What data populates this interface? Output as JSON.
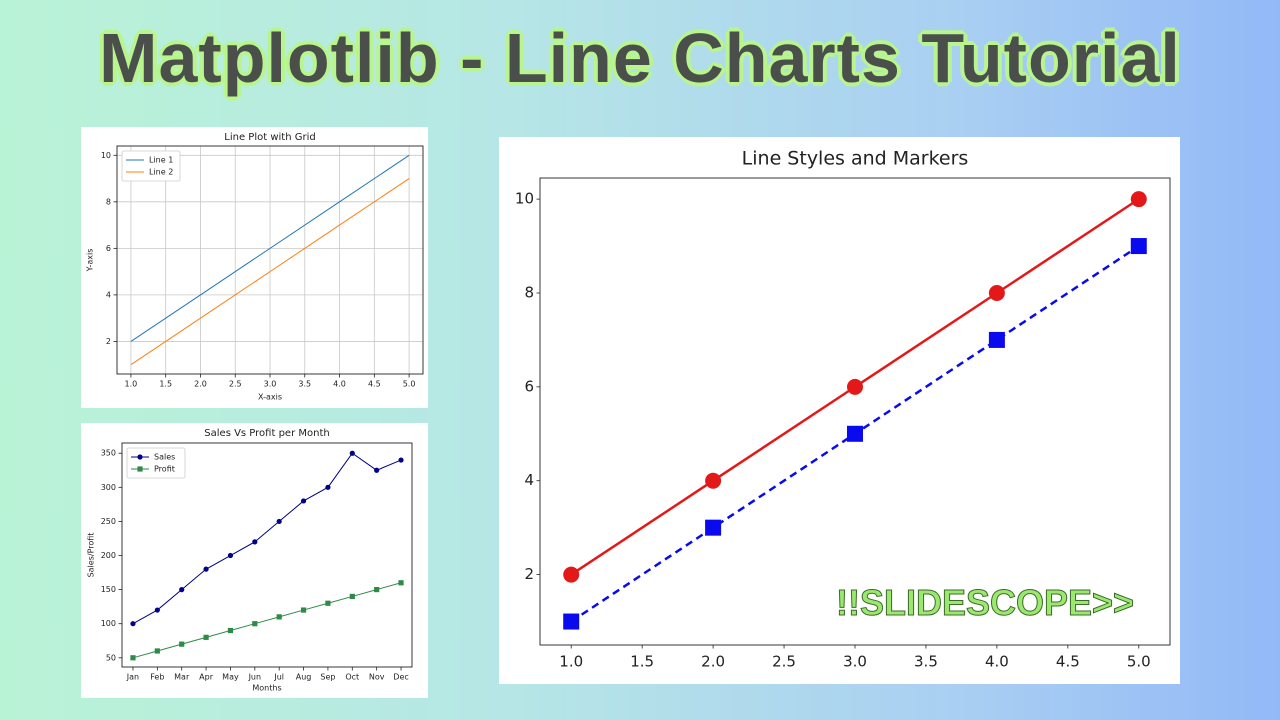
{
  "title": "Matplotlib - Line Charts Tutorial",
  "watermark": "!!SLIDESCOPE>>",
  "chart_data": [
    {
      "type": "line",
      "title": "Line Plot with Grid",
      "x_label": "X-axis",
      "y_label": "Y-axis",
      "x": [
        1,
        2,
        3,
        4,
        5
      ],
      "series": [
        {
          "name": "Line 1",
          "color": "#1f77b4",
          "values": [
            2,
            4,
            6,
            8,
            10
          ]
        },
        {
          "name": "Line 2",
          "color": "#ff7f0e",
          "values": [
            1,
            3,
            5,
            7,
            9
          ]
        }
      ],
      "xlim": [
        0.8,
        5.2
      ],
      "ylim": [
        0.6,
        10.4
      ],
      "xticks": [
        {
          "value": 1,
          "label": "1.0"
        },
        {
          "value": 1.5,
          "label": "1.5"
        },
        {
          "value": 2,
          "label": "2.0"
        },
        {
          "value": 2.5,
          "label": "2.5"
        },
        {
          "value": 3,
          "label": "3.0"
        },
        {
          "value": 3.5,
          "label": "3.5"
        },
        {
          "value": 4,
          "label": "4.0"
        },
        {
          "value": 4.5,
          "label": "4.5"
        },
        {
          "value": 5,
          "label": "5.0"
        }
      ],
      "yticks": [
        2,
        4,
        6,
        8,
        10
      ],
      "grid": true,
      "legend": "upper-left"
    },
    {
      "type": "line",
      "title": "Sales Vs Profit per Month",
      "x_label": "Months",
      "y_label": "Sales/Profit",
      "categories": [
        "Jan",
        "Feb",
        "Mar",
        "Apr",
        "May",
        "Jun",
        "Jul",
        "Aug",
        "Sep",
        "Oct",
        "Nov",
        "Dec"
      ],
      "series": [
        {
          "name": "Sales",
          "color": "#00008b",
          "marker": "circle",
          "values": [
            100,
            120,
            150,
            180,
            200,
            220,
            250,
            280,
            300,
            350,
            325,
            340
          ]
        },
        {
          "name": "Profit",
          "color": "#2e8b47",
          "marker": "square",
          "values": [
            50,
            60,
            70,
            80,
            90,
            100,
            110,
            120,
            130,
            140,
            150,
            160
          ]
        }
      ],
      "ylim": [
        36.5,
        365
      ],
      "yticks": [
        50,
        100,
        150,
        200,
        250,
        300,
        350
      ],
      "grid": false,
      "legend": "upper-left"
    },
    {
      "type": "line",
      "title": "Line Styles and Markers",
      "x": [
        1,
        2,
        3,
        4,
        5
      ],
      "series": [
        {
          "color": "#e31919",
          "marker": "circle",
          "linestyle": "solid",
          "values": [
            2,
            4,
            6,
            8,
            10
          ]
        },
        {
          "color": "#0a0aee",
          "marker": "square",
          "linestyle": "dashed",
          "values": [
            1,
            3,
            5,
            7,
            9
          ]
        }
      ],
      "xlim": [
        0.78,
        5.22
      ],
      "ylim": [
        0.5,
        10.45
      ],
      "xticks": [
        {
          "value": 1,
          "label": "1.0"
        },
        {
          "value": 1.5,
          "label": "1.5"
        },
        {
          "value": 2,
          "label": "2.0"
        },
        {
          "value": 2.5,
          "label": "2.5"
        },
        {
          "value": 3,
          "label": "3.0"
        },
        {
          "value": 3.5,
          "label": "3.5"
        },
        {
          "value": 4,
          "label": "4.0"
        },
        {
          "value": 4.5,
          "label": "4.5"
        },
        {
          "value": 5,
          "label": "5.0"
        }
      ],
      "yticks": [
        2,
        4,
        6,
        8,
        10
      ],
      "grid": false
    }
  ]
}
